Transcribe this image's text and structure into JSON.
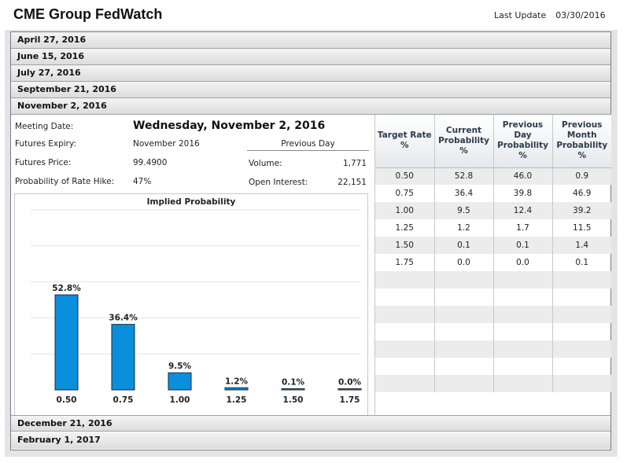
{
  "app": {
    "title": "CME Group FedWatch",
    "last_update_label": "Last Update",
    "last_update_value": "03/30/2016"
  },
  "meetings_before": [
    {
      "label": "April 27, 2016"
    },
    {
      "label": "June 15, 2016"
    },
    {
      "label": "July 27, 2016"
    },
    {
      "label": "September 21, 2016"
    },
    {
      "label": "November 2, 2016"
    }
  ],
  "meetings_after": [
    {
      "label": "December 21, 2016"
    },
    {
      "label": "February 1, 2017"
    }
  ],
  "details": {
    "meeting_date_label": "Meeting Date:",
    "meeting_date_value": "Wednesday, November 2, 2016",
    "futures_expiry_label": "Futures Expiry:",
    "futures_expiry_value": "November 2016",
    "futures_price_label": "Futures Price:",
    "futures_price_value": "99.4900",
    "prob_hike_label": "Probability of Rate Hike:",
    "prob_hike_value": "47%",
    "previous_day_label": "Previous Day",
    "volume_label": "Volume:",
    "volume_value": "1,771",
    "open_interest_label": "Open Interest:",
    "open_interest_value": "22,151"
  },
  "chart_data": {
    "type": "bar",
    "title": "Implied Probability",
    "categories": [
      "0.50",
      "0.75",
      "1.00",
      "1.25",
      "1.50",
      "1.75"
    ],
    "values": [
      52.8,
      36.4,
      9.5,
      1.2,
      0.1,
      0.0
    ],
    "value_labels": [
      "52.8%",
      "36.4%",
      "9.5%",
      "1.2%",
      "0.1%",
      "0.0%"
    ],
    "ylim": [
      0,
      100
    ],
    "grid": true,
    "colors": {
      "bar": "#0a8fdc",
      "bar_border": "#1a2a3a"
    }
  },
  "prob_table": {
    "headers": [
      "Target Rate %",
      "Current Probability %",
      "Previous Day Probability %",
      "Previous Month Probability %"
    ],
    "rows": [
      [
        "0.50",
        "52.8",
        "46.0",
        "0.9"
      ],
      [
        "0.75",
        "36.4",
        "39.8",
        "46.9"
      ],
      [
        "1.00",
        "9.5",
        "12.4",
        "39.2"
      ],
      [
        "1.25",
        "1.2",
        "1.7",
        "11.5"
      ],
      [
        "1.50",
        "0.1",
        "0.1",
        "1.4"
      ],
      [
        "1.75",
        "0.0",
        "0.0",
        "0.1"
      ],
      [
        "",
        "",
        "",
        ""
      ],
      [
        "",
        "",
        "",
        ""
      ],
      [
        "",
        "",
        "",
        ""
      ],
      [
        "",
        "",
        "",
        ""
      ],
      [
        "",
        "",
        "",
        ""
      ],
      [
        "",
        "",
        "",
        ""
      ],
      [
        "",
        "",
        "",
        ""
      ]
    ]
  }
}
